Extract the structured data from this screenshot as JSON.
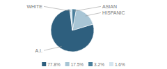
{
  "chart_data": {
    "type": "pie",
    "categories": [
      "A.I.",
      "HISPANIC",
      "ASIAN",
      "WHITE"
    ],
    "values": [
      77.8,
      17.5,
      3.2,
      1.6
    ],
    "value_labels": [
      "77.8%",
      "17.5%",
      "3.2%",
      "1.6%"
    ],
    "colors": [
      "#2e5f7e",
      "#a8c5d5",
      "#4a7f9c",
      "#d4e5ef"
    ],
    "legend": "bottom"
  }
}
